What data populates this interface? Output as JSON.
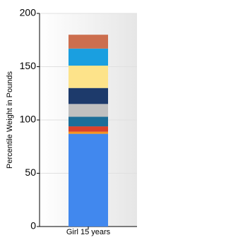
{
  "chart_data": {
    "type": "stacked-bar",
    "y_label": "Percentile Weight in Pounds",
    "categories": [
      "Girl 15 years"
    ],
    "series": [
      {
        "color": "#4188ee",
        "values": [
          87
        ]
      },
      {
        "color": "#f7941d",
        "values": [
          2
        ]
      },
      {
        "color": "#d9412b",
        "values": [
          5
        ]
      },
      {
        "color": "#1b6e99",
        "values": [
          9
        ]
      },
      {
        "color": "#c0c0c0",
        "values": [
          12
        ]
      },
      {
        "color": "#1d3a6b",
        "values": [
          15
        ]
      },
      {
        "color": "#fde38a",
        "values": [
          21
        ]
      },
      {
        "color": "#1a9fe0",
        "values": [
          16
        ]
      },
      {
        "color": "#cc6e4e",
        "values": [
          13
        ]
      }
    ],
    "ylim": [
      0,
      200
    ],
    "yticks": [
      0,
      50,
      100,
      150,
      200
    ],
    "grid": true
  }
}
